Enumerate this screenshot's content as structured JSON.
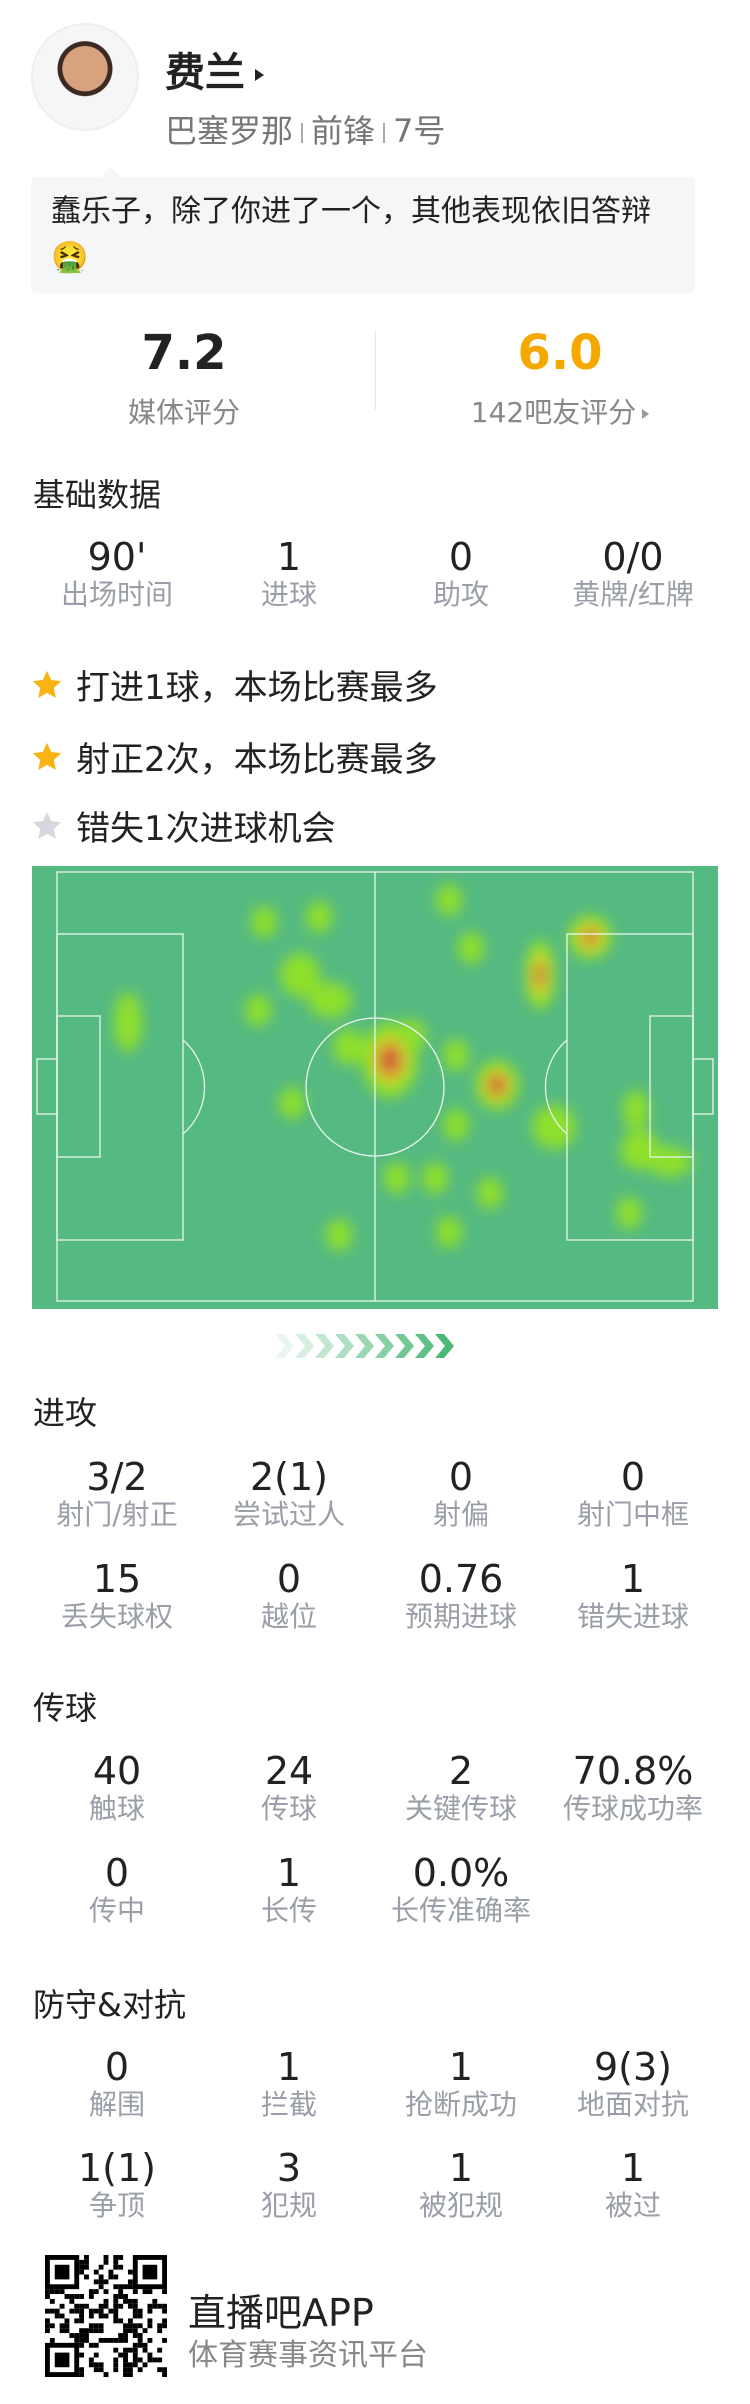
{
  "player": {
    "avatar": "player-photo",
    "name": "费兰",
    "team": "巴塞罗那",
    "position": "前锋",
    "number": "7号"
  },
  "comment": "蠢乐子，除了你进了一个，其他表现依旧答辩🤮",
  "ratings": {
    "media": {
      "value": "7.2",
      "label": "媒体评分"
    },
    "fans": {
      "value": "6.0",
      "label": "142吧友评分",
      "color": "#f5a800"
    }
  },
  "basic": {
    "title": "基础数据",
    "stats": [
      {
        "value": "90'",
        "label": "出场时间"
      },
      {
        "value": "1",
        "label": "进球"
      },
      {
        "value": "0",
        "label": "助攻"
      },
      {
        "value": "0/0",
        "label": "黄牌/红牌"
      }
    ]
  },
  "highlights": [
    {
      "icon": "star-gold",
      "text": "打进1球，本场比赛最多"
    },
    {
      "icon": "star-gold",
      "text": "射正2次，本场比赛最多"
    },
    {
      "icon": "star-gray",
      "text": "错失1次进球机会"
    }
  ],
  "heatmap": {
    "pitch_color": "#55b982",
    "direction": "attacking-right"
  },
  "attack": {
    "title": "进攻",
    "stats": [
      {
        "value": "3/2",
        "label": "射门/射正"
      },
      {
        "value": "2(1)",
        "label": "尝试过人"
      },
      {
        "value": "0",
        "label": "射偏"
      },
      {
        "value": "0",
        "label": "射门中框"
      },
      {
        "value": "15",
        "label": "丢失球权"
      },
      {
        "value": "0",
        "label": "越位"
      },
      {
        "value": "0.76",
        "label": "预期进球"
      },
      {
        "value": "1",
        "label": "错失进球"
      }
    ]
  },
  "passing": {
    "title": "传球",
    "stats": [
      {
        "value": "40",
        "label": "触球"
      },
      {
        "value": "24",
        "label": "传球"
      },
      {
        "value": "2",
        "label": "关键传球"
      },
      {
        "value": "70.8%",
        "label": "传球成功率"
      },
      {
        "value": "0",
        "label": "传中"
      },
      {
        "value": "1",
        "label": "长传"
      },
      {
        "value": "0.0%",
        "label": "长传准确率"
      }
    ]
  },
  "defense": {
    "title": "防守&对抗",
    "stats": [
      {
        "value": "0",
        "label": "解围"
      },
      {
        "value": "1",
        "label": "拦截"
      },
      {
        "value": "1",
        "label": "抢断成功"
      },
      {
        "value": "9(3)",
        "label": "地面对抗"
      },
      {
        "value": "1(1)",
        "label": "争顶"
      },
      {
        "value": "3",
        "label": "犯规"
      },
      {
        "value": "1",
        "label": "被犯规"
      },
      {
        "value": "1",
        "label": "被过"
      }
    ]
  },
  "footer": {
    "brand": "直播吧APP",
    "slogan": "体育赛事资讯平台",
    "qr": "qr-code"
  }
}
